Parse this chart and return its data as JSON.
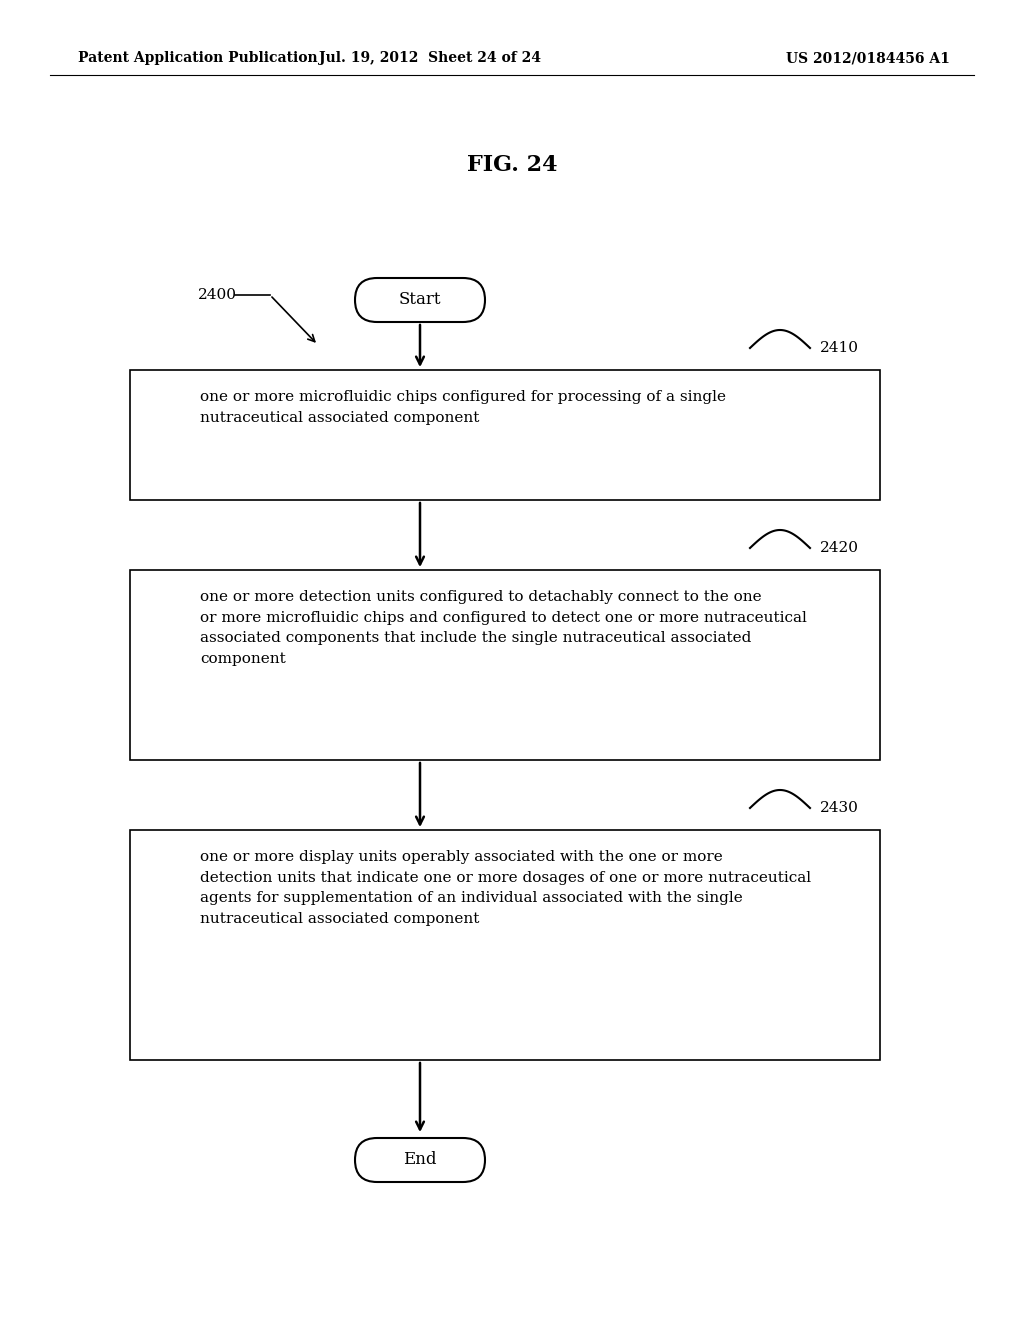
{
  "background_color": "#ffffff",
  "header_left": "Patent Application Publication",
  "header_mid": "Jul. 19, 2012  Sheet 24 of 24",
  "header_right": "US 2012/0184456 A1",
  "fig_title": "FIG. 24",
  "label_2400": "2400",
  "label_2410": "2410",
  "label_2420": "2420",
  "label_2430": "2430",
  "start_text": "Start",
  "end_text": "End",
  "box1_text": "one or more microfluidic chips configured for processing of a single\nnutraceutical associated component",
  "box2_text": "one or more detection units configured to detachably connect to the one\nor more microfluidic chips and configured to detect one or more nutraceutical\nassociated components that include the single nutraceutical associated\ncomponent",
  "box3_text": "one or more display units operably associated with the one or more\ndetection units that indicate one or more dosages of one or more nutraceutical\nagents for supplementation of an individual associated with the single\nnutraceutical associated component",
  "text_color": "#000000",
  "box_edge_color": "#000000",
  "box_fill_color": "#ffffff",
  "arrow_color": "#000000",
  "font_family": "DejaVu Serif"
}
